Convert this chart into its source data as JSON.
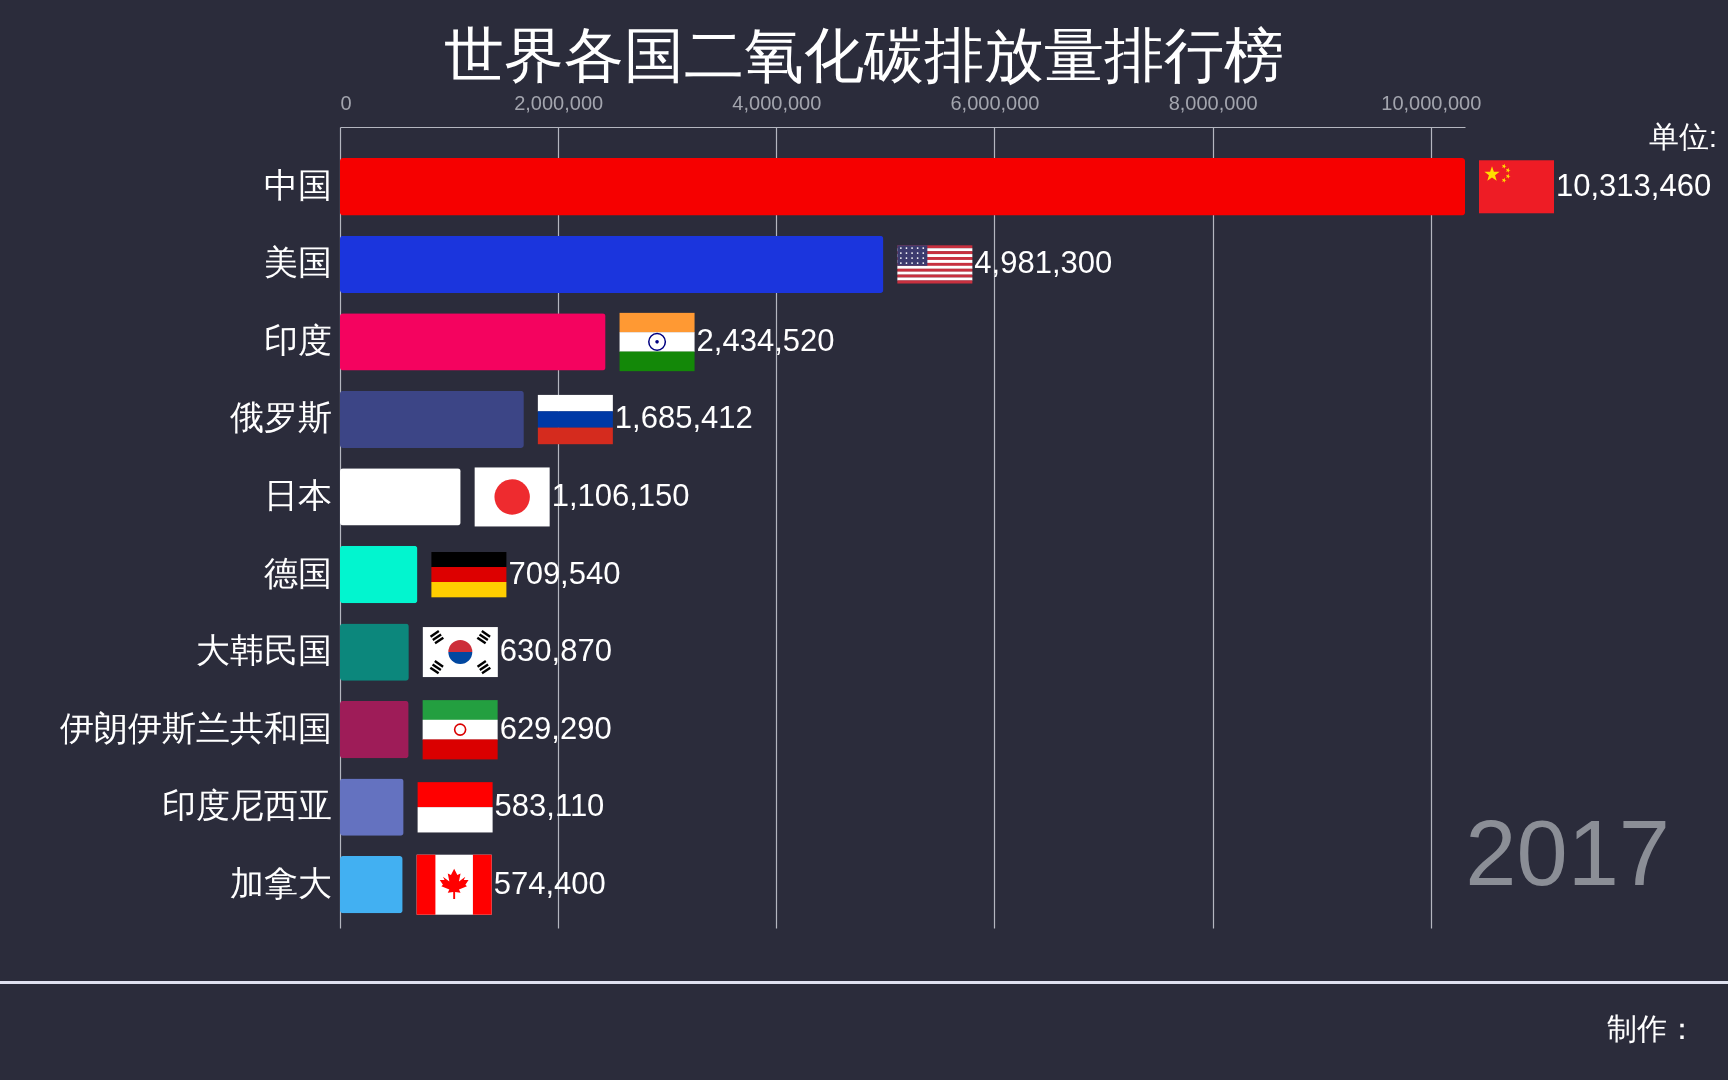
{
  "chart_data": {
    "type": "bar",
    "orientation": "horizontal",
    "title": "世界各国二氧化碳排放量排行榜",
    "categories": [
      "中国",
      "美国",
      "印度",
      "俄罗斯",
      "日本",
      "德国",
      "大韩民国",
      "伊朗伊斯兰共和国",
      "印度尼西亚",
      "加拿大"
    ],
    "values": [
      10313460,
      4981300,
      2434520,
      1685412,
      1106150,
      709540,
      630870,
      629290,
      583110,
      574400
    ],
    "value_labels": [
      "10,313,460",
      "4,981,300",
      "2,434,520",
      "1,685,412",
      "1,106,150",
      "709,540",
      "630,870",
      "629,290",
      "583,110",
      "574,400"
    ],
    "colors": [
      "#f60000",
      "#1b35dd",
      "#f4035f",
      "#3c4586",
      "#ffffff",
      "#02f5cf",
      "#0c877c",
      "#9e1c58",
      "#6472c0",
      "#42b0f2"
    ],
    "xlim": [
      0,
      10313460
    ],
    "xticks": [
      0,
      {
        "value": 2000000,
        "label": "2,000,000"
      },
      {
        "value": 4000000,
        "label": "4,000,000"
      },
      {
        "value": 6000000,
        "label": "6,000,000"
      },
      {
        "value": 8000000,
        "label": "8,000,000"
      },
      {
        "value": 10000000,
        "label": "10,000,000"
      }
    ],
    "grid": "x",
    "annotations": [
      "单位:",
      "2017",
      "制作："
    ]
  }
}
